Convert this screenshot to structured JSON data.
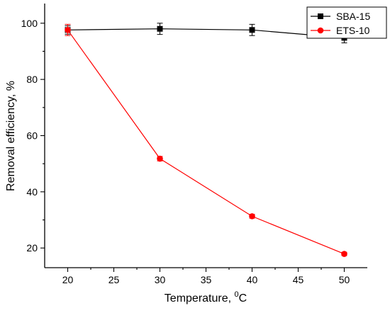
{
  "chart_data": {
    "type": "line",
    "xlabel": "Temperature, ",
    "xlabel_superscript": "0",
    "xlabel_unit": "C",
    "ylabel": "Removal efficiency, %",
    "xlim": [
      17.5,
      52.5
    ],
    "ylim": [
      13,
      107
    ],
    "x_ticks": [
      20,
      25,
      30,
      35,
      40,
      45,
      50
    ],
    "y_ticks": [
      20,
      40,
      60,
      80,
      100
    ],
    "grid": false,
    "legend_position": "top-right",
    "series": [
      {
        "name": "SBA-15",
        "color": "#000000",
        "marker": "square",
        "x": [
          20,
          30,
          40,
          50
        ],
        "y": [
          97.6,
          98.0,
          97.6,
          94.8
        ],
        "yerr": [
          1.5,
          2.0,
          2.0,
          1.8
        ]
      },
      {
        "name": "ETS-10",
        "color": "#ff0000",
        "marker": "circle",
        "x": [
          20,
          30,
          40,
          50
        ],
        "y": [
          97.6,
          51.8,
          31.3,
          17.9
        ],
        "yerr": [
          2.0,
          0.8,
          0.7,
          0.6
        ]
      }
    ]
  }
}
